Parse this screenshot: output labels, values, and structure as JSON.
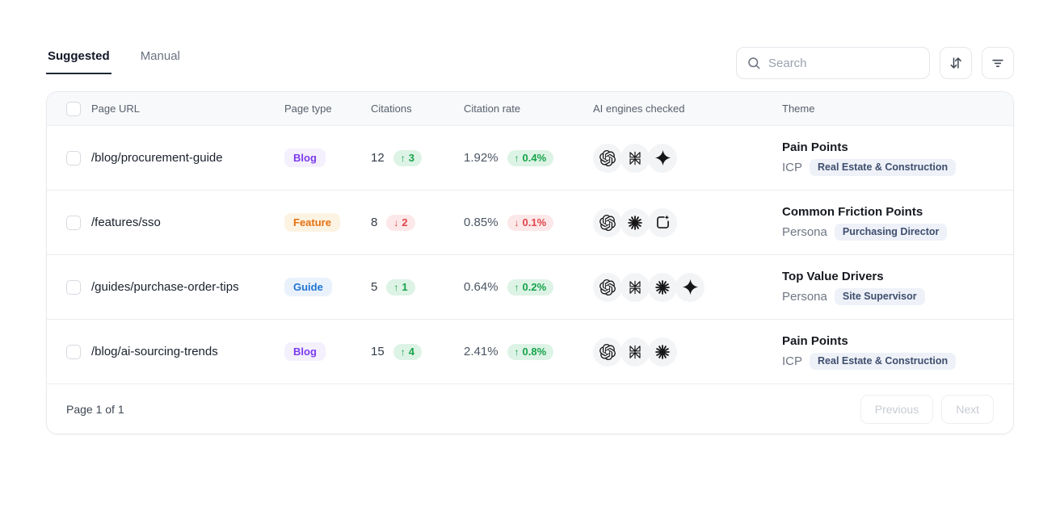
{
  "tabs": [
    {
      "label": "Suggested",
      "active": true
    },
    {
      "label": "Manual",
      "active": false
    }
  ],
  "search": {
    "placeholder": "Search"
  },
  "toolbar": {
    "sort_button": "sort",
    "filter_button": "filter"
  },
  "table": {
    "columns": [
      "Page URL",
      "Page type",
      "Citations",
      "Citation rate",
      "AI engines checked",
      "Theme"
    ],
    "page_type_styles": {
      "Blog": {
        "text": "#7c3aed",
        "bg": "#f4f0fd"
      },
      "Feature": {
        "text": "#e4700f",
        "bg": "#fdf3e3"
      },
      "Guide": {
        "text": "#2274d2",
        "bg": "#e9f2fc"
      }
    },
    "rows": [
      {
        "page_url": "/blog/procurement-guide",
        "page_type": "Blog",
        "citations": "12",
        "citations_trend": {
          "direction": "up",
          "value": "3"
        },
        "citation_rate": "1.92%",
        "citation_rate_trend": {
          "direction": "up",
          "value": "0.4%"
        },
        "ai_engines": [
          "chatgpt",
          "perplexity",
          "gemini"
        ],
        "theme_title": "Pain Points",
        "theme_category": "ICP",
        "theme_badge": "Real Estate & Construction"
      },
      {
        "page_url": "/features/sso",
        "page_type": "Feature",
        "citations": "8",
        "citations_trend": {
          "direction": "down",
          "value": "2"
        },
        "citation_rate": "0.85%",
        "citation_rate_trend": {
          "direction": "down",
          "value": "0.1%"
        },
        "ai_engines": [
          "chatgpt",
          "claude",
          "ai-overviews"
        ],
        "theme_title": "Common Friction Points",
        "theme_category": "Persona",
        "theme_badge": "Purchasing Director"
      },
      {
        "page_url": "/guides/purchase-order-tips",
        "page_type": "Guide",
        "citations": "5",
        "citations_trend": {
          "direction": "up",
          "value": "1"
        },
        "citation_rate": "0.64%",
        "citation_rate_trend": {
          "direction": "up",
          "value": "0.2%"
        },
        "ai_engines": [
          "chatgpt",
          "perplexity",
          "claude",
          "gemini"
        ],
        "theme_title": "Top Value Drivers",
        "theme_category": "Persona",
        "theme_badge": "Site Supervisor"
      },
      {
        "page_url": "/blog/ai-sourcing-trends",
        "page_type": "Blog",
        "citations": "15",
        "citations_trend": {
          "direction": "up",
          "value": "4"
        },
        "citation_rate": "2.41%",
        "citation_rate_trend": {
          "direction": "up",
          "value": "0.8%"
        },
        "ai_engines": [
          "chatgpt",
          "perplexity",
          "claude"
        ],
        "theme_title": "Pain Points",
        "theme_category": "ICP",
        "theme_badge": "Real Estate & Construction"
      }
    ]
  },
  "pagination": {
    "label": "Page 1 of 1",
    "previous_label": "Previous",
    "next_label": "Next"
  },
  "colors": {
    "tab_underline": "#1f2937",
    "trend_up": {
      "text": "#16a34a",
      "bg": "#ddf3e5"
    },
    "trend_down": {
      "text": "#e0444b",
      "bg": "#fce8e9"
    },
    "theme_badge": {
      "text": "#3e4e6e",
      "bg": "#eef1f8"
    }
  }
}
